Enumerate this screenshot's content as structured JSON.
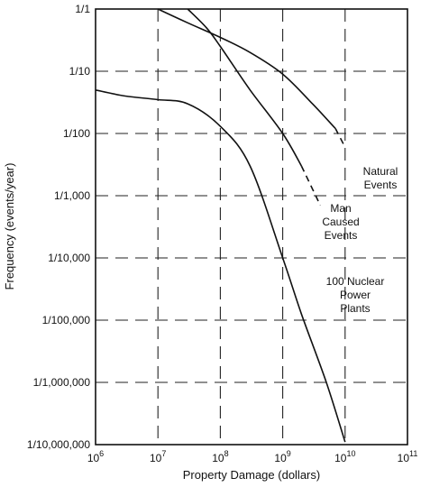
{
  "chart_data": {
    "type": "line",
    "xlabel": "Property Damage (dollars)",
    "ylabel": "Frequency (events/year)",
    "x_scale": "log",
    "y_scale": "log",
    "xlim": [
      1000000,
      100000000000
    ],
    "ylim": [
      1e-07,
      1
    ],
    "grid": true,
    "x_ticks": [
      {
        "value": 1000000,
        "base": "10",
        "exp": "6"
      },
      {
        "value": 10000000,
        "base": "10",
        "exp": "7"
      },
      {
        "value": 100000000,
        "base": "10",
        "exp": "8"
      },
      {
        "value": 1000000000,
        "base": "10",
        "exp": "9"
      },
      {
        "value": 10000000000,
        "base": "10",
        "exp": "10"
      },
      {
        "value": 100000000000,
        "base": "10",
        "exp": "11"
      }
    ],
    "y_ticks": [
      {
        "value": 1,
        "label": "1/1"
      },
      {
        "value": 0.1,
        "label": "1/10"
      },
      {
        "value": 0.01,
        "label": "1/100"
      },
      {
        "value": 0.001,
        "label": "1/1,000"
      },
      {
        "value": 0.0001,
        "label": "1/10,000"
      },
      {
        "value": 1e-05,
        "label": "1/100,000"
      },
      {
        "value": 1e-06,
        "label": "1/1,000,000"
      },
      {
        "value": 1e-07,
        "label": "1/10,000,000"
      }
    ],
    "series": [
      {
        "label_lines": [
          "Natural",
          "Events"
        ],
        "points": [
          [
            10000000,
            1
          ],
          [
            30000000,
            0.6
          ],
          [
            100000000,
            0.35
          ],
          [
            300000000,
            0.2
          ],
          [
            1000000000,
            0.09
          ],
          [
            3000000000,
            0.03
          ],
          [
            7000000000,
            0.012
          ],
          [
            10000000000,
            0.006
          ]
        ],
        "dashed_tail": [
          [
            7000000000,
            0.012
          ],
          [
            10000000000,
            0.006
          ]
        ]
      },
      {
        "label_lines": [
          "Man",
          "Caused",
          "Events"
        ],
        "points": [
          [
            30000000,
            1
          ],
          [
            60000000,
            0.5
          ],
          [
            100000000,
            0.25
          ],
          [
            300000000,
            0.05
          ],
          [
            1000000000,
            0.01
          ],
          [
            2000000000,
            0.003
          ],
          [
            3500000000,
            0.001
          ],
          [
            4000000000,
            0.0007
          ]
        ],
        "dashed_tail": [
          [
            2000000000,
            0.003
          ],
          [
            4000000000,
            0.0007
          ]
        ]
      },
      {
        "label_lines": [
          "100 Nuclear",
          "Power",
          "Plants"
        ],
        "points": [
          [
            1000000,
            0.05
          ],
          [
            3000000,
            0.04
          ],
          [
            10000000,
            0.035
          ],
          [
            30000000,
            0.03
          ],
          [
            100000000,
            0.013
          ],
          [
            300000000,
            0.003
          ],
          [
            1000000000,
            0.0001
          ],
          [
            2000000000,
            1.25e-05
          ],
          [
            5000000000,
            1e-06
          ],
          [
            10000000000,
            1.1e-07
          ]
        ],
        "dashed_tail": []
      }
    ]
  }
}
